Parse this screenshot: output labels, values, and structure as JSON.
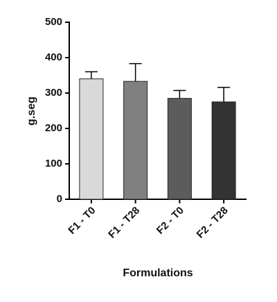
{
  "chart_data": {
    "type": "bar",
    "categories": [
      "F1 - T0",
      "F1 - T28",
      "F2 - T0",
      "F2 - T28"
    ],
    "values": [
      340,
      333,
      285,
      275
    ],
    "errors": [
      20,
      50,
      22,
      41
    ],
    "colors": [
      "#d9d9d9",
      "#808080",
      "#5c5c5c",
      "#333333"
    ],
    "ylabel": "g.seg",
    "xlabel": "Formulations",
    "ylim": [
      0,
      500
    ],
    "yticks": [
      0,
      100,
      200,
      300,
      400,
      500
    ]
  }
}
